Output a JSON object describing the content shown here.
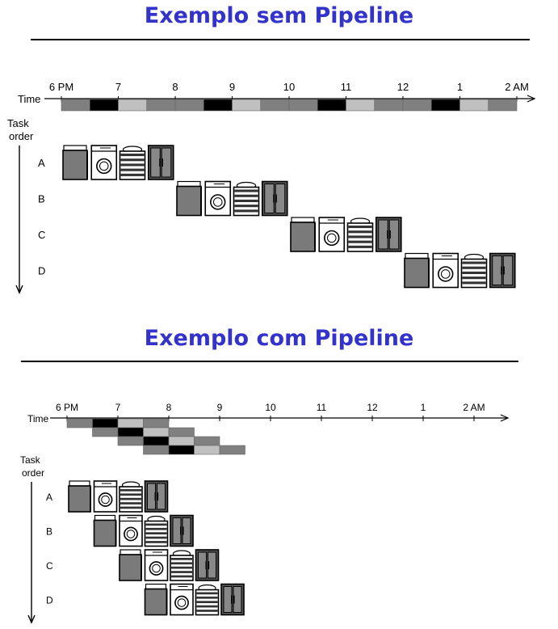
{
  "titles": {
    "without_pipeline": "Exemplo sem Pipeline",
    "with_pipeline": "Exemplo com Pipeline"
  },
  "axis": {
    "time_label": "Time",
    "task_label_line1": "Task",
    "task_label_line2": "order",
    "hours": [
      "6 PM",
      "7",
      "8",
      "9",
      "10",
      "11",
      "12",
      "1",
      "2 AM"
    ]
  },
  "tasks": [
    "A",
    "B",
    "C",
    "D"
  ],
  "stages": [
    "washer-icon",
    "dryer-icon",
    "folding-icon",
    "closet-icon"
  ],
  "stage_colors": [
    "#808080",
    "#000000",
    "#c0c0c0",
    "#808080"
  ],
  "stage_duration_hours": 0.5,
  "sequential_start_hours": [
    0,
    2,
    4,
    6
  ],
  "pipelined_start_hours": [
    0,
    0.5,
    1,
    1.5
  ]
}
